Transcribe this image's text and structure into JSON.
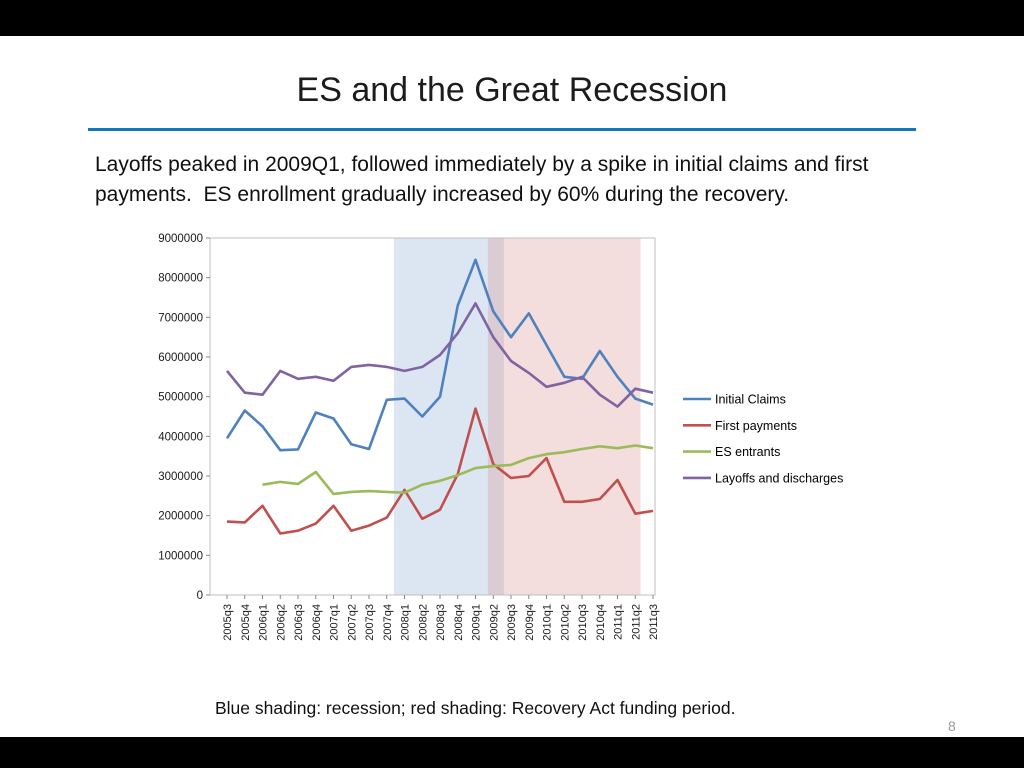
{
  "slide": {
    "title": "ES and the Great Recession",
    "body_line": "Layoffs peaked in 2009Q1, followed immediately by a spike in initial claims and first payments.  ES enrollment gradually increased by 60% during the recovery.",
    "caption": "Blue shading: recession; red shading: Recovery Act funding period.",
    "page_number": "8",
    "accent_rule_color": "#1476BC"
  },
  "chart_data": {
    "type": "line",
    "title": "",
    "xlabel": "",
    "ylabel": "",
    "ylim": [
      0,
      9000000
    ],
    "ytick_step": 1000000,
    "grid": false,
    "legend_position": "right",
    "categories": [
      "2005q3",
      "2005q4",
      "2006q1",
      "2006q2",
      "2006q3",
      "2006q4",
      "2007q1",
      "2007q2",
      "2007q3",
      "2007q4",
      "2008q1",
      "2008q2",
      "2008q3",
      "2008q4",
      "2009q1",
      "2009q2",
      "2009q3",
      "2009q4",
      "2010q1",
      "2010q2",
      "2010q3",
      "2010q4",
      "2011q1",
      "2011q2",
      "2011q3"
    ],
    "series": [
      {
        "name": "Initial Claims",
        "color": "#4F81BD",
        "values": [
          3950000,
          4650000,
          4250000,
          3650000,
          3670000,
          4600000,
          4450000,
          3800000,
          3680000,
          4920000,
          4950000,
          4500000,
          5000000,
          7300000,
          8450000,
          7150000,
          6500000,
          7100000,
          6300000,
          5500000,
          5450000,
          6150000,
          5500000,
          4950000,
          4800000
        ]
      },
      {
        "name": "First payments",
        "color": "#C0504D",
        "values": [
          1850000,
          1830000,
          2250000,
          1550000,
          1620000,
          1800000,
          2250000,
          1620000,
          1750000,
          1950000,
          2650000,
          1920000,
          2150000,
          3050000,
          4700000,
          3300000,
          2950000,
          3000000,
          3450000,
          2350000,
          2350000,
          2420000,
          2900000,
          2050000,
          2120000
        ]
      },
      {
        "name": "ES entrants",
        "color": "#9BBB59",
        "values": [
          null,
          null,
          2780000,
          2850000,
          2800000,
          3100000,
          2550000,
          2600000,
          2620000,
          2600000,
          2580000,
          2780000,
          2880000,
          3020000,
          3200000,
          3250000,
          3280000,
          3450000,
          3550000,
          3600000,
          3680000,
          3750000,
          3700000,
          3770000,
          3700000
        ]
      },
      {
        "name": "Layoffs and discharges",
        "color": "#8064A2",
        "values": [
          5650000,
          5100000,
          5050000,
          5650000,
          5450000,
          5500000,
          5400000,
          5750000,
          5800000,
          5750000,
          5650000,
          5750000,
          6050000,
          6600000,
          7350000,
          6500000,
          5900000,
          5600000,
          5250000,
          5350000,
          5500000,
          5050000,
          4750000,
          5200000,
          5100000
        ]
      }
    ],
    "shading": [
      {
        "label": "recession",
        "color": "#DCE6F2",
        "opacity": 1,
        "from": "2008q1",
        "to": "2009q2",
        "start_index": 9.4,
        "end_index": 15.6
      },
      {
        "label": "Recovery Act funding period",
        "color": "#D99694",
        "opacity": 0.32,
        "from": "2009q1",
        "to": "2011q2",
        "start_index": 14.7,
        "end_index": 23.3
      }
    ]
  }
}
